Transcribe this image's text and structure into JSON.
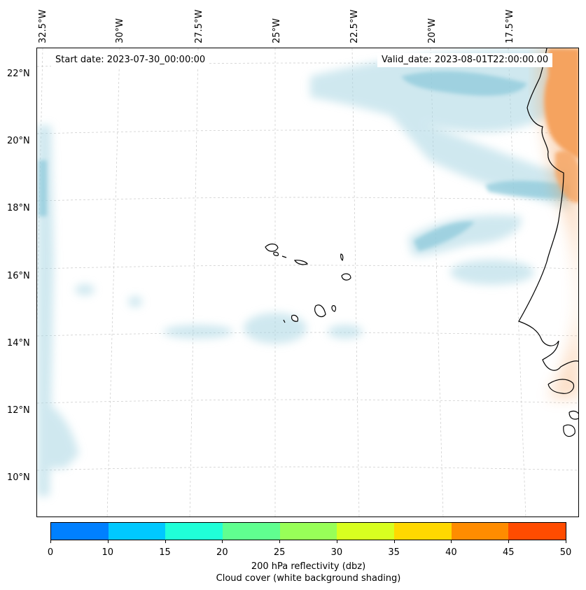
{
  "map": {
    "start_date": "Start date: 2023-07-30_00:00:00",
    "valid_date": "Valid_date: 2023-08-01T22:00:00.00",
    "longitude_labels": [
      "32.5°W",
      "30°W",
      "27.5°W",
      "25°W",
      "22.5°W",
      "20°W",
      "17.5°W"
    ],
    "latitude_labels": [
      "22°N",
      "20°N",
      "18°N",
      "16°N",
      "14°N",
      "12°N",
      "10°N"
    ],
    "features": [
      "cloud-shading",
      "reflectivity-shading",
      "coastline",
      "cape-verde-islands",
      "gridlines"
    ]
  },
  "colorbar": {
    "ticks": [
      "0",
      "10",
      "15",
      "20",
      "25",
      "30",
      "35",
      "40",
      "45",
      "50"
    ],
    "colors": [
      "#0080ff",
      "#00c8ff",
      "#20ffd8",
      "#60ff90",
      "#98ff58",
      "#d8ff20",
      "#ffd800",
      "#ff8c00",
      "#ff4c00"
    ],
    "label_line1": "200 hPa reflectivity (dbz)",
    "label_line2": "Cloud cover (white background shading)"
  },
  "style": {
    "cloud_color": "#a9d6e3",
    "land_shade_color": "#f5a35f",
    "coast_color": "#000000",
    "grid_color": "#c8c8c8"
  }
}
